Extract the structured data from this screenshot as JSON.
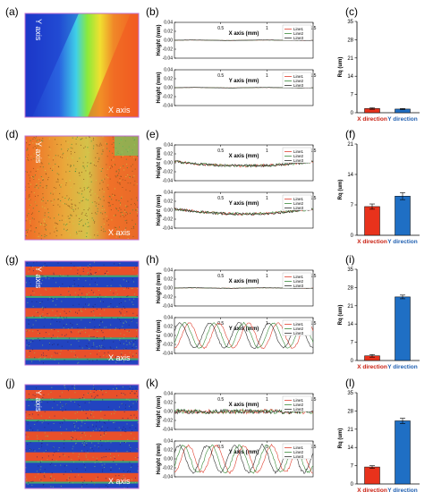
{
  "rows": [
    {
      "map": {
        "label": "(a)",
        "x_axis_label": "X axis",
        "y_axis_label": "Y axis",
        "style": "gradient"
      },
      "profile_x": {
        "label": "(b)",
        "xlabel": "X axis (mm)",
        "ylabel": "Height (mm)",
        "legend": [
          "Line1",
          "Line2",
          "Line3"
        ]
      },
      "profile_y": {
        "xlabel": "Y axis (mm)",
        "ylabel": "Height (mm)",
        "legend": [
          "Line1",
          "Line2",
          "Line3"
        ]
      },
      "bars": {
        "label": "(c)",
        "ylabel": "Rq (um)"
      }
    },
    {
      "map": {
        "label": "(d)",
        "x_axis_label": "X axis",
        "y_axis_label": "Y axis",
        "style": "rough"
      },
      "profile_x": {
        "label": "(e)",
        "xlabel": "X axis (mm)",
        "ylabel": "Height (mm)",
        "legend": [
          "Line1",
          "Line2",
          "Line3"
        ]
      },
      "profile_y": {
        "xlabel": "Y axis (mm)",
        "ylabel": "Height (mm)",
        "legend": [
          "Line1",
          "Line2",
          "Line3"
        ]
      },
      "bars": {
        "label": "(f)",
        "ylabel": "Rq (um)"
      }
    },
    {
      "map": {
        "label": "(g)",
        "x_axis_label": "X axis",
        "y_axis_label": "Y axis",
        "style": "stripes"
      },
      "profile_x": {
        "label": "(h)",
        "xlabel": "X axis (mm)",
        "ylabel": "Height (mm)",
        "legend": [
          "Line1",
          "Line2",
          "Line3"
        ]
      },
      "profile_y": {
        "xlabel": "Y axis (mm)",
        "ylabel": "Height (mm)",
        "legend": [
          "Line1",
          "Line2",
          "Line3"
        ]
      },
      "bars": {
        "label": "(i)",
        "ylabel": "Rq (um)"
      }
    },
    {
      "map": {
        "label": "(j)",
        "x_axis_label": "X axis",
        "y_axis_label": "Y axis",
        "style": "stripes"
      },
      "profile_x": {
        "label": "(k)",
        "xlabel": "X axis (mm)",
        "ylabel": "Height (mm)",
        "legend": [
          "Line1",
          "Line2",
          "Line3"
        ]
      },
      "profile_y": {
        "xlabel": "Y axis (mm)",
        "ylabel": "Height (mm)",
        "legend": [
          "Line1",
          "Line2",
          "Line3"
        ]
      },
      "bars": {
        "label": "(l)",
        "ylabel": "Rq (um)"
      }
    }
  ],
  "chart_data": [
    {
      "type": "line",
      "panel": "(b) X",
      "xlabel": "X axis (mm)",
      "ylabel": "Height (mm)",
      "xlim": [
        0,
        1.5
      ],
      "ylim": [
        -0.04,
        0.04
      ],
      "x_ticks": [
        "0.5",
        "1",
        "1.5"
      ],
      "y_ticks": [
        "0.04",
        "0.02",
        "0.00",
        "-0.02",
        "-0.04"
      ],
      "profile": {
        "kind": "flat",
        "amplitude": 0.0005,
        "noise": 0.0002
      },
      "series": [
        {
          "name": "Line1",
          "offset": 0
        },
        {
          "name": "Line2",
          "offset": 0
        },
        {
          "name": "Line3",
          "offset": 0
        }
      ]
    },
    {
      "type": "line",
      "panel": "(b) Y",
      "xlabel": "Y axis (mm)",
      "ylabel": "Height (mm)",
      "xlim": [
        0,
        1.5
      ],
      "ylim": [
        -0.04,
        0.04
      ],
      "x_ticks": [
        "0.5",
        "1",
        "1.5"
      ],
      "y_ticks": [
        "0.04",
        "0.02",
        "0.00",
        "-0.02",
        "-0.04"
      ],
      "profile": {
        "kind": "flat",
        "amplitude": 0.0005,
        "noise": 0.0002
      },
      "series": [
        {
          "name": "Line1",
          "offset": 0
        },
        {
          "name": "Line2",
          "offset": 0
        },
        {
          "name": "Line3",
          "offset": 0
        }
      ]
    },
    {
      "type": "line",
      "panel": "(e) X",
      "xlabel": "X axis (mm)",
      "ylabel": "Height (mm)",
      "xlim": [
        0,
        1.5
      ],
      "ylim": [
        -0.04,
        0.04
      ],
      "x_ticks": [
        "0.5",
        "1",
        "1.5"
      ],
      "y_ticks": [
        "0.04",
        "0.02",
        "0.00",
        "-0.02",
        "-0.04"
      ],
      "profile": {
        "kind": "bowl",
        "amplitude": 0.008,
        "noise": 0.003
      },
      "series": [
        {
          "name": "Line1",
          "offset": 0
        },
        {
          "name": "Line2",
          "offset": 0.2
        },
        {
          "name": "Line3",
          "offset": 0.4
        }
      ]
    },
    {
      "type": "line",
      "panel": "(e) Y",
      "xlabel": "Y axis (mm)",
      "ylabel": "Height (mm)",
      "xlim": [
        0,
        1.5
      ],
      "ylim": [
        -0.04,
        0.04
      ],
      "x_ticks": [
        "0.5",
        "1",
        "1.5"
      ],
      "y_ticks": [
        "0.04",
        "0.02",
        "0.00",
        "-0.02",
        "-0.04"
      ],
      "profile": {
        "kind": "bowl",
        "amplitude": 0.01,
        "noise": 0.003
      },
      "series": [
        {
          "name": "Line1",
          "offset": 0
        },
        {
          "name": "Line2",
          "offset": 0.2
        },
        {
          "name": "Line3",
          "offset": 0.4
        }
      ]
    },
    {
      "type": "line",
      "panel": "(h) X",
      "xlabel": "X axis (mm)",
      "ylabel": "Height (mm)",
      "xlim": [
        0,
        1.5
      ],
      "ylim": [
        -0.04,
        0.04
      ],
      "x_ticks": [
        "0.5",
        "1",
        "1.5"
      ],
      "y_ticks": [
        "0.04",
        "0.02",
        "0.00",
        "-0.02",
        "-0.04"
      ],
      "profile": {
        "kind": "flat",
        "amplitude": 0.0005,
        "noise": 0.0004
      },
      "series": [
        {
          "name": "Line1",
          "offset": 0
        },
        {
          "name": "Line2",
          "offset": 0
        },
        {
          "name": "Line3",
          "offset": 0
        }
      ]
    },
    {
      "type": "line",
      "panel": "(h) Y",
      "xlabel": "Y axis (mm)",
      "ylabel": "Height (mm)",
      "xlim": [
        0,
        1.5
      ],
      "ylim": [
        -0.04,
        0.04
      ],
      "x_ticks": [
        "0.5",
        "1",
        "1.5"
      ],
      "y_ticks": [
        "0.04",
        "0.02",
        "0.00",
        "-0.02",
        "-0.04"
      ],
      "profile": {
        "kind": "sine",
        "amplitude": 0.028,
        "period": 0.32,
        "noise": 0.002
      },
      "series": [
        {
          "name": "Line1",
          "offset": 0
        },
        {
          "name": "Line2",
          "offset": 0.05
        },
        {
          "name": "Line3",
          "offset": 0.1
        }
      ]
    },
    {
      "type": "line",
      "panel": "(k) X",
      "xlabel": "X axis (mm)",
      "ylabel": "Height (mm)",
      "xlim": [
        0,
        1.5
      ],
      "ylim": [
        -0.04,
        0.04
      ],
      "x_ticks": [
        "0.5",
        "1",
        "1.5"
      ],
      "y_ticks": [
        "0.04",
        "0.02",
        "0.00",
        "-0.02",
        "-0.04"
      ],
      "profile": {
        "kind": "flat",
        "amplitude": 0.0005,
        "noise": 0.005
      },
      "series": [
        {
          "name": "Line1",
          "offset": 0
        },
        {
          "name": "Line2",
          "offset": 0.3
        },
        {
          "name": "Line3",
          "offset": 0.6
        }
      ]
    },
    {
      "type": "line",
      "panel": "(k) Y",
      "xlabel": "Y axis (mm)",
      "ylabel": "Height (mm)",
      "xlim": [
        0,
        1.5
      ],
      "ylim": [
        -0.04,
        0.04
      ],
      "x_ticks": [
        "0.5",
        "1",
        "1.5"
      ],
      "y_ticks": [
        "0.04",
        "0.02",
        "0.00",
        "-0.02",
        "-0.04"
      ],
      "profile": {
        "kind": "sine",
        "amplitude": 0.03,
        "period": 0.3,
        "noise": 0.003
      },
      "series": [
        {
          "name": "Line1",
          "offset": 0
        },
        {
          "name": "Line2",
          "offset": 0.05
        },
        {
          "name": "Line3",
          "offset": 0.1
        }
      ]
    },
    {
      "type": "bar",
      "panel": "(c)",
      "categories": [
        "X direction",
        "Y direction"
      ],
      "values": [
        1.6,
        1.4
      ],
      "errors": [
        0.3,
        0.2
      ],
      "ylabel": "Rq (um)",
      "ylim": [
        0,
        35
      ],
      "y_ticks": [
        "0",
        "7",
        "14",
        "21",
        "28",
        "35"
      ],
      "colors": [
        "#e8321c",
        "#1f6fc4"
      ],
      "label_colors": [
        "#c81e10",
        "#1f5fb0"
      ]
    },
    {
      "type": "bar",
      "panel": "(f)",
      "categories": [
        "X direction",
        "Y direction"
      ],
      "values": [
        6.6,
        9.0
      ],
      "errors": [
        0.6,
        0.8
      ],
      "ylabel": "Rq (um)",
      "ylim": [
        0,
        21
      ],
      "y_ticks": [
        "0",
        "7",
        "14",
        "21"
      ],
      "colors": [
        "#e8321c",
        "#1f6fc4"
      ],
      "label_colors": [
        "#c81e10",
        "#1f5fb0"
      ]
    },
    {
      "type": "bar",
      "panel": "(i)",
      "categories": [
        "X direction",
        "Y direction"
      ],
      "values": [
        1.8,
        24.4
      ],
      "errors": [
        0.5,
        0.7
      ],
      "ylabel": "Rq (um)",
      "ylim": [
        0,
        35
      ],
      "y_ticks": [
        "0",
        "7",
        "14",
        "21",
        "28",
        "35"
      ],
      "colors": [
        "#e8321c",
        "#1f6fc4"
      ],
      "label_colors": [
        "#c81e10",
        "#1f5fb0"
      ]
    },
    {
      "type": "bar",
      "panel": "(l)",
      "categories": [
        "X direction",
        "Y direction"
      ],
      "values": [
        6.5,
        24.2
      ],
      "errors": [
        0.5,
        1.0
      ],
      "ylabel": "Rq (um)",
      "ylim": [
        0,
        35
      ],
      "y_ticks": [
        "0",
        "7",
        "14",
        "21",
        "28",
        "35"
      ],
      "colors": [
        "#e8321c",
        "#1f6fc4"
      ],
      "label_colors": [
        "#c81e10",
        "#1f5fb0"
      ]
    }
  ]
}
